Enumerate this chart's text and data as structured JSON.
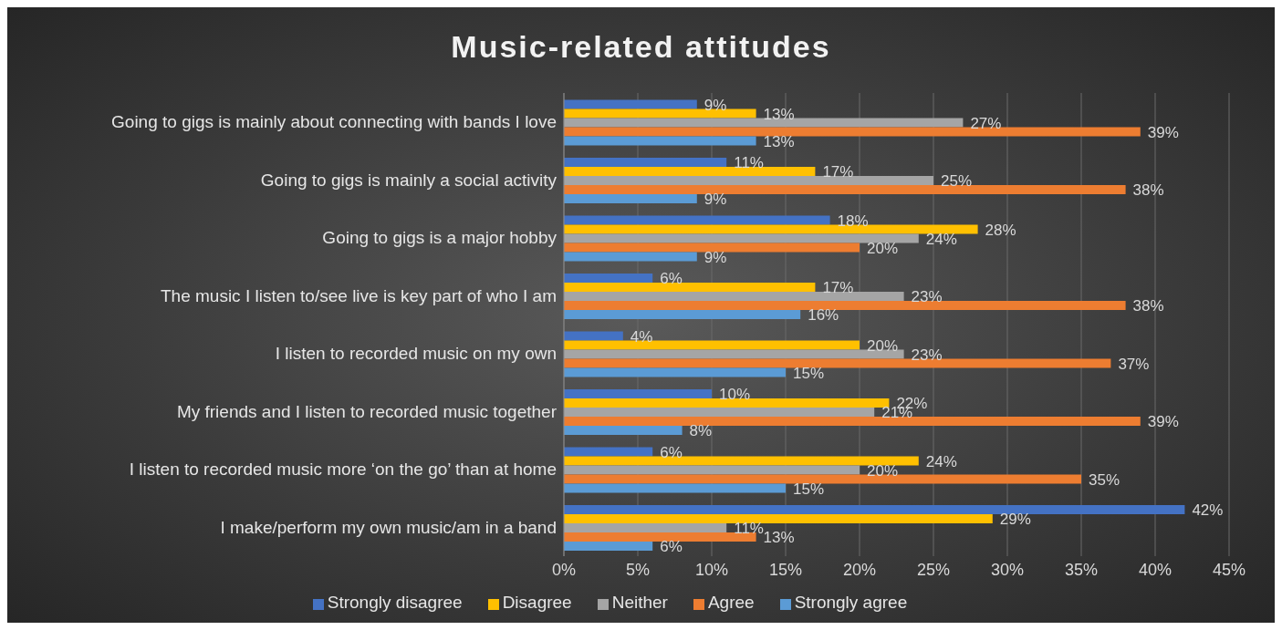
{
  "chart_data": {
    "type": "bar",
    "orientation": "horizontal",
    "title": "Music-related attitudes",
    "categories": [
      "Going to gigs is mainly about connecting with bands I love",
      "Going to gigs is mainly a social activity",
      "Going to gigs is a major hobby",
      "The music I listen to/see live is key part of who I am",
      "I listen to recorded music on my own",
      "My friends and I listen to recorded music together",
      "I listen to recorded music  more ‘on the go’ than at home",
      "I make/perform my own music/am in a band"
    ],
    "series": [
      {
        "name": "Strongly disagree",
        "color": "#4472c4",
        "values": [
          9,
          11,
          18,
          6,
          4,
          10,
          6,
          42
        ],
        "value_labels": [
          "9%",
          "11%",
          "18%",
          "6%",
          "4%",
          "10%",
          "6%",
          "42%"
        ]
      },
      {
        "name": "Disagree",
        "color": "#ffc000",
        "values": [
          13,
          17,
          28,
          17,
          20,
          22,
          24,
          29
        ],
        "value_labels": [
          "13%",
          "17%",
          "28%",
          "17%",
          "20%",
          "22%",
          "24%",
          "29%"
        ]
      },
      {
        "name": "Neither",
        "color": "#a5a5a5",
        "values": [
          27,
          25,
          24,
          23,
          23,
          21,
          20,
          11
        ],
        "value_labels": [
          "27%",
          "25%",
          "24%",
          "23%",
          "23%",
          "21%",
          "20%",
          "11%"
        ]
      },
      {
        "name": "Agree",
        "color": "#ed7d31",
        "values": [
          39,
          38,
          20,
          38,
          37,
          39,
          35,
          13
        ],
        "value_labels": [
          "39%",
          "38%",
          "20%",
          "38%",
          "37%",
          "39%",
          "35%",
          "13%"
        ]
      },
      {
        "name": "Strongly agree",
        "color": "#5b9bd5",
        "values": [
          13,
          9,
          9,
          16,
          15,
          8,
          15,
          6
        ],
        "value_labels": [
          "13%",
          "9%",
          "9%",
          "16%",
          "15%",
          "8%",
          "15%",
          "6%"
        ]
      }
    ],
    "xlim": [
      0,
      45
    ],
    "xticks": [
      {
        "value": 0,
        "label": "0%"
      },
      {
        "value": 5,
        "label": "5%"
      },
      {
        "value": 10,
        "label": "10%"
      },
      {
        "value": 15,
        "label": "15%"
      },
      {
        "value": 20,
        "label": "20%"
      },
      {
        "value": 25,
        "label": "25%"
      },
      {
        "value": 30,
        "label": "30%"
      },
      {
        "value": 35,
        "label": "35%"
      },
      {
        "value": 40,
        "label": "40%"
      },
      {
        "value": 45,
        "label": "45%"
      }
    ],
    "grid": "x",
    "legend": "bottom"
  }
}
